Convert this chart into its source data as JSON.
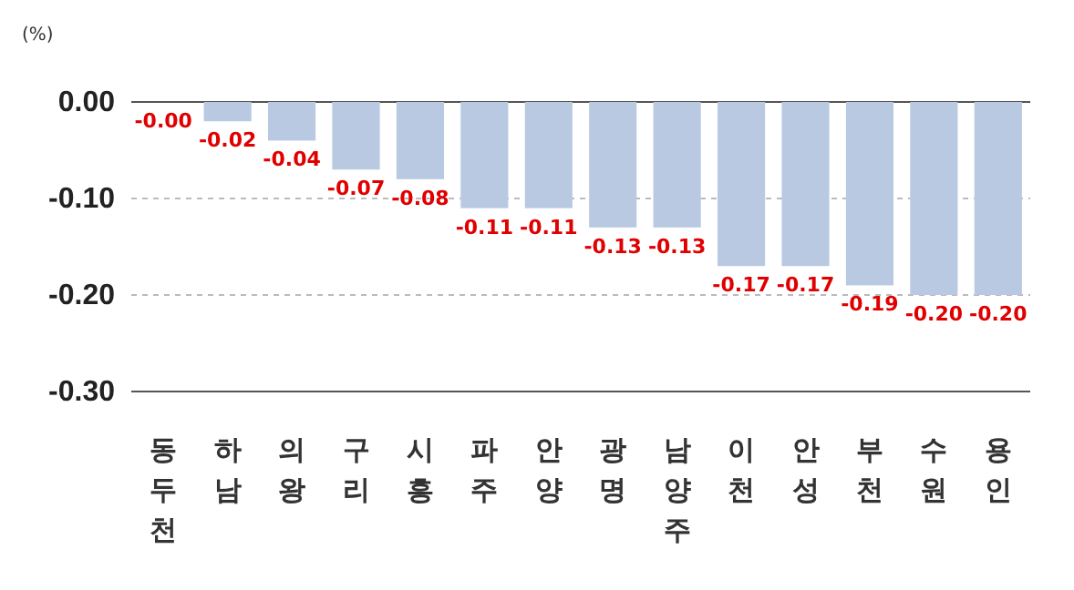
{
  "chart_data": {
    "type": "bar",
    "ylabel": "(%)",
    "categories": [
      "동두천",
      "하남",
      "의왕",
      "구리",
      "시흥",
      "파주",
      "안양",
      "광명",
      "남양주",
      "이천",
      "안성",
      "부천",
      "수원",
      "용인"
    ],
    "values": [
      0,
      -0.02,
      -0.04,
      -0.07,
      -0.08,
      -0.11,
      -0.11,
      -0.13,
      -0.13,
      -0.17,
      -0.17,
      -0.19,
      -0.2,
      -0.2
    ],
    "value_labels": [
      "-0.00",
      "-0.02",
      "-0.04",
      "-0.07",
      "-0.08",
      "-0.11",
      "-0.11",
      "-0.13",
      "-0.13",
      "-0.17",
      "-0.17",
      "-0.19",
      "-0.20",
      "-0.20"
    ],
    "color": "#b8c9e1",
    "ylim": [
      -0.3,
      0
    ],
    "yticks": [
      {
        "value": 0,
        "label": "0.00"
      },
      {
        "value": -0.1,
        "label": "-0.10"
      },
      {
        "value": -0.2,
        "label": "-0.20"
      },
      {
        "value": -0.3,
        "label": "-0.30"
      }
    ],
    "grid": "y"
  }
}
